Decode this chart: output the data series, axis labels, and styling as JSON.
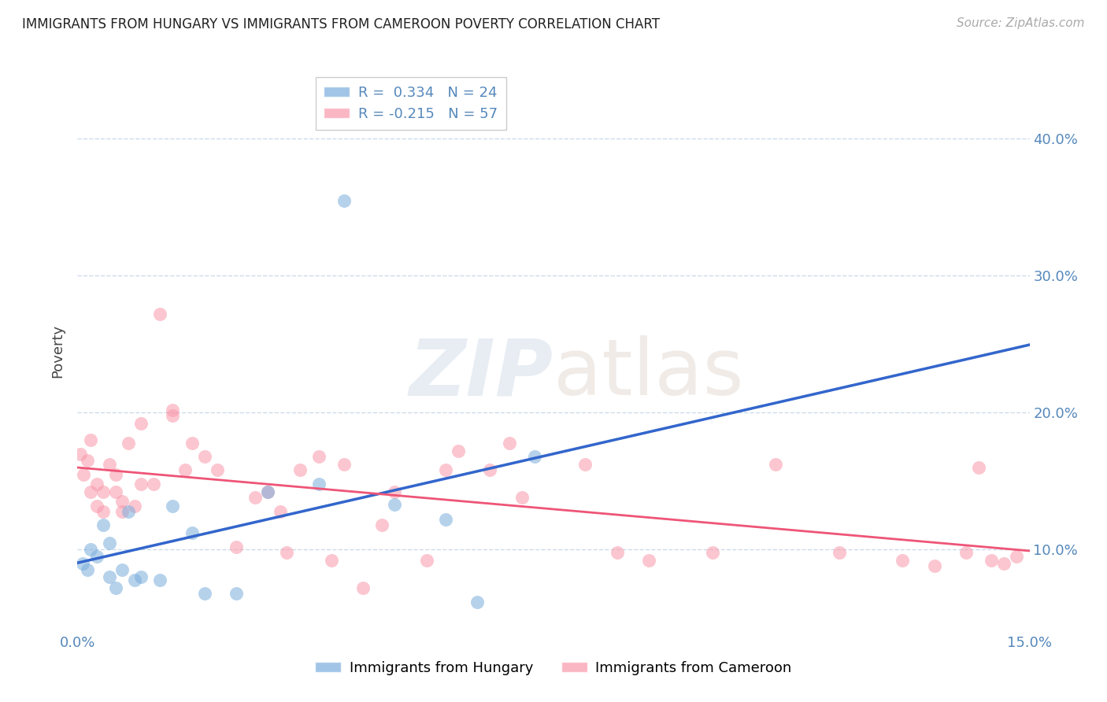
{
  "title": "IMMIGRANTS FROM HUNGARY VS IMMIGRANTS FROM CAMEROON POVERTY CORRELATION CHART",
  "source": "Source: ZipAtlas.com",
  "ylabel": "Poverty",
  "ytick_labels": [
    "10.0%",
    "20.0%",
    "30.0%",
    "40.0%"
  ],
  "ytick_values": [
    0.1,
    0.2,
    0.3,
    0.4
  ],
  "xlim": [
    0.0,
    0.15
  ],
  "ylim": [
    0.04,
    0.45
  ],
  "hungary_color": "#7aaddc",
  "cameroon_color": "#f898aa",
  "hungary_R": 0.334,
  "hungary_N": 24,
  "cameroon_R": -0.215,
  "cameroon_N": 57,
  "legend_label_hungary": "Immigrants from Hungary",
  "legend_label_cameroon": "Immigrants from Cameroon",
  "hungary_x": [
    0.0008,
    0.0015,
    0.002,
    0.003,
    0.004,
    0.005,
    0.005,
    0.006,
    0.007,
    0.008,
    0.009,
    0.01,
    0.013,
    0.015,
    0.018,
    0.02,
    0.025,
    0.03,
    0.038,
    0.042,
    0.05,
    0.058,
    0.063,
    0.072
  ],
  "hungary_y": [
    0.09,
    0.085,
    0.1,
    0.095,
    0.118,
    0.08,
    0.105,
    0.072,
    0.085,
    0.128,
    0.078,
    0.08,
    0.078,
    0.132,
    0.112,
    0.068,
    0.068,
    0.142,
    0.148,
    0.355,
    0.133,
    0.122,
    0.062,
    0.168
  ],
  "cameroon_x": [
    0.0005,
    0.001,
    0.0015,
    0.002,
    0.002,
    0.003,
    0.003,
    0.004,
    0.004,
    0.005,
    0.006,
    0.006,
    0.007,
    0.007,
    0.008,
    0.009,
    0.01,
    0.01,
    0.012,
    0.013,
    0.015,
    0.015,
    0.017,
    0.018,
    0.02,
    0.022,
    0.025,
    0.028,
    0.03,
    0.032,
    0.033,
    0.035,
    0.038,
    0.04,
    0.042,
    0.045,
    0.048,
    0.05,
    0.055,
    0.058,
    0.06,
    0.065,
    0.068,
    0.07,
    0.08,
    0.085,
    0.09,
    0.1,
    0.11,
    0.12,
    0.13,
    0.135,
    0.14,
    0.142,
    0.144,
    0.146,
    0.148
  ],
  "cameroon_y": [
    0.17,
    0.155,
    0.165,
    0.142,
    0.18,
    0.148,
    0.132,
    0.142,
    0.128,
    0.162,
    0.155,
    0.142,
    0.135,
    0.128,
    0.178,
    0.132,
    0.148,
    0.192,
    0.148,
    0.272,
    0.198,
    0.202,
    0.158,
    0.178,
    0.168,
    0.158,
    0.102,
    0.138,
    0.142,
    0.128,
    0.098,
    0.158,
    0.168,
    0.092,
    0.162,
    0.072,
    0.118,
    0.142,
    0.092,
    0.158,
    0.172,
    0.158,
    0.178,
    0.138,
    0.162,
    0.098,
    0.092,
    0.098,
    0.162,
    0.098,
    0.092,
    0.088,
    0.098,
    0.16,
    0.092,
    0.09,
    0.095
  ]
}
